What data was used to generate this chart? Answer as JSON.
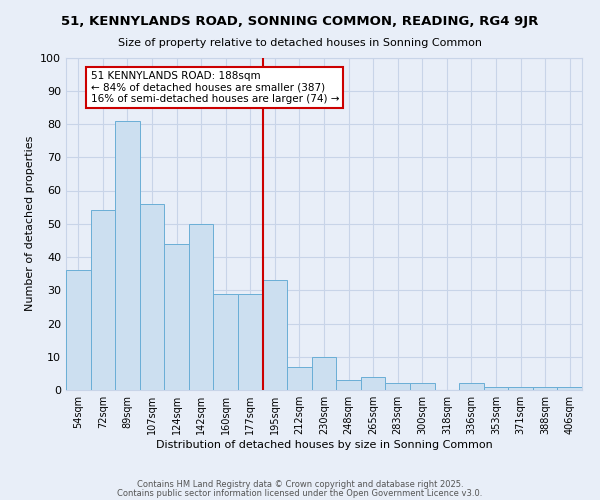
{
  "title": "51, KENNYLANDS ROAD, SONNING COMMON, READING, RG4 9JR",
  "subtitle": "Size of property relative to detached houses in Sonning Common",
  "xlabel": "Distribution of detached houses by size in Sonning Common",
  "ylabel": "Number of detached properties",
  "categories": [
    "54sqm",
    "72sqm",
    "89sqm",
    "107sqm",
    "124sqm",
    "142sqm",
    "160sqm",
    "177sqm",
    "195sqm",
    "212sqm",
    "230sqm",
    "248sqm",
    "265sqm",
    "283sqm",
    "300sqm",
    "318sqm",
    "336sqm",
    "353sqm",
    "371sqm",
    "388sqm",
    "406sqm"
  ],
  "values": [
    36,
    54,
    81,
    56,
    44,
    50,
    29,
    29,
    33,
    7,
    10,
    3,
    4,
    2,
    2,
    0,
    2,
    1,
    1,
    1,
    1
  ],
  "bar_color": "#ccdff0",
  "bar_edge_color": "#6aaed6",
  "ylim": [
    0,
    100
  ],
  "yticks": [
    0,
    10,
    20,
    30,
    40,
    50,
    60,
    70,
    80,
    90,
    100
  ],
  "vline_x": 7.5,
  "vline_color": "#cc0000",
  "annotation_title": "51 KENNYLANDS ROAD: 188sqm",
  "annotation_line1": "← 84% of detached houses are smaller (387)",
  "annotation_line2": "16% of semi-detached houses are larger (74) →",
  "annotation_box_facecolor": "#ffffff",
  "annotation_box_edgecolor": "#cc0000",
  "grid_color": "#c8d4e8",
  "bg_color": "#e8eef8",
  "footer1": "Contains HM Land Registry data © Crown copyright and database right 2025.",
  "footer2": "Contains public sector information licensed under the Open Government Licence v3.0."
}
